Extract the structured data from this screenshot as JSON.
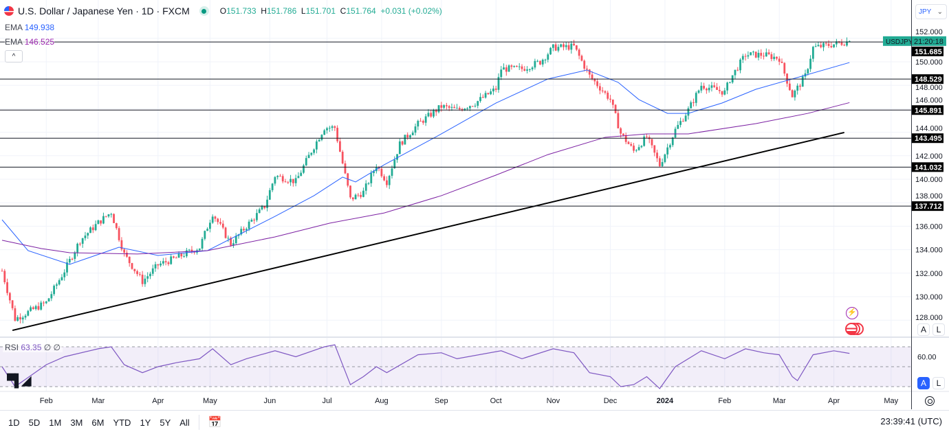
{
  "header": {
    "symbol_title": "U.S. Dollar / Japanese Yen · 1D · FXCM",
    "ohlc": {
      "o_label": "O",
      "o": "151.733",
      "h_label": "H",
      "h": "151.786",
      "l_label": "L",
      "l": "151.701",
      "c_label": "C",
      "c": "151.764",
      "change": "+0.031 (+0.02%)"
    },
    "ema1": {
      "label": "EMA",
      "value": "149.938"
    },
    "ema2": {
      "label": "EMA",
      "value": "146.525"
    }
  },
  "currency_selector": "JPY",
  "scale_buttons": {
    "auto": "A",
    "log": "L"
  },
  "rsi_legend": {
    "label": "RSI",
    "value": "63.35",
    "extra1": "∅",
    "extra2": "∅"
  },
  "price_axis_label": "60.00",
  "symbol_tag": "USDJPY",
  "countdown": "21:20:18",
  "toolbar": {
    "ranges": [
      "1D",
      "5D",
      "1M",
      "3M",
      "6M",
      "YTD",
      "1Y",
      "5Y",
      "All"
    ],
    "clock": "23:39:41 (UTC)"
  },
  "colors": {
    "up": "#22ab94",
    "down": "#f7525f",
    "ema_fast": "#2962ff",
    "ema_slow": "#7b1fa2",
    "rsi": "#7e57c2",
    "level_line": "#131722"
  },
  "chart_data": {
    "type": "candlestick",
    "symbol": "USDJPY",
    "interval": "1D",
    "ylim": [
      127,
      153
    ],
    "y_ticks": [
      152,
      150,
      148,
      146,
      144,
      142,
      140,
      138,
      136,
      134,
      132,
      130,
      128
    ],
    "grid": true,
    "x_ticks": [
      {
        "label": "Feb",
        "date": "2023-02-01"
      },
      {
        "label": "Mar",
        "date": "2023-03-01"
      },
      {
        "label": "Apr",
        "date": "2023-04-03"
      },
      {
        "label": "May",
        "date": "2023-05-01"
      },
      {
        "label": "Jun",
        "date": "2023-06-01"
      },
      {
        "label": "Jul",
        "date": "2023-07-03"
      },
      {
        "label": "Aug",
        "date": "2023-08-01"
      },
      {
        "label": "Sep",
        "date": "2023-09-01"
      },
      {
        "label": "Oct",
        "date": "2023-10-02"
      },
      {
        "label": "Nov",
        "date": "2023-11-01"
      },
      {
        "label": "Dec",
        "date": "2023-12-01"
      },
      {
        "label": "2024",
        "date": "2024-01-01"
      },
      {
        "label": "Feb",
        "date": "2024-02-01"
      },
      {
        "label": "Mar",
        "date": "2024-03-01"
      },
      {
        "label": "Apr",
        "date": "2024-04-01"
      },
      {
        "label": "May",
        "date": "2024-05-01"
      }
    ],
    "close_path": [
      [
        "2023-01-09",
        132.2
      ],
      [
        "2023-01-16",
        128.1
      ],
      [
        "2023-02-01",
        129.5
      ],
      [
        "2023-02-10",
        132.2
      ],
      [
        "2023-02-20",
        134.8
      ],
      [
        "2023-03-01",
        136.3
      ],
      [
        "2023-03-08",
        137.2
      ],
      [
        "2023-03-15",
        133.6
      ],
      [
        "2023-03-24",
        131.3
      ],
      [
        "2023-04-03",
        132.7
      ],
      [
        "2023-04-12",
        133.3
      ],
      [
        "2023-04-25",
        134.2
      ],
      [
        "2023-05-02",
        137.1
      ],
      [
        "2023-05-11",
        134.5
      ],
      [
        "2023-05-19",
        136.0
      ],
      [
        "2023-05-30",
        137.7
      ],
      [
        "2023-06-05",
        140.3
      ],
      [
        "2023-06-15",
        139.8
      ],
      [
        "2023-06-23",
        142.4
      ],
      [
        "2023-06-30",
        144.4
      ],
      [
        "2023-07-06",
        144.4
      ],
      [
        "2023-07-14",
        138.3
      ],
      [
        "2023-07-21",
        138.9
      ],
      [
        "2023-07-28",
        141.2
      ],
      [
        "2023-08-03",
        139.8
      ],
      [
        "2023-08-10",
        143.0
      ],
      [
        "2023-08-21",
        144.7
      ],
      [
        "2023-09-01",
        146.2
      ],
      [
        "2023-09-11",
        145.9
      ],
      [
        "2023-09-20",
        146.5
      ],
      [
        "2023-10-02",
        147.7
      ],
      [
        "2023-10-04",
        149.4
      ],
      [
        "2023-10-16",
        149.4
      ],
      [
        "2023-10-25",
        150.0
      ],
      [
        "2023-11-01",
        151.2
      ],
      [
        "2023-11-13",
        151.3
      ],
      [
        "2023-11-21",
        148.8
      ],
      [
        "2023-12-01",
        146.8
      ],
      [
        "2023-12-07",
        143.9
      ],
      [
        "2023-12-14",
        142.4
      ],
      [
        "2023-12-21",
        143.6
      ],
      [
        "2023-12-28",
        141.2
      ],
      [
        "2024-01-05",
        144.2
      ],
      [
        "2024-01-12",
        145.9
      ],
      [
        "2024-01-19",
        148.0
      ],
      [
        "2024-02-01",
        147.4
      ],
      [
        "2024-02-05",
        148.5
      ],
      [
        "2024-02-13",
        150.6
      ],
      [
        "2024-02-22",
        150.6
      ],
      [
        "2024-03-01",
        150.3
      ],
      [
        "2024-03-08",
        147.1
      ],
      [
        "2024-03-15",
        148.8
      ],
      [
        "2024-03-20",
        151.2
      ],
      [
        "2024-04-01",
        151.5
      ],
      [
        "2024-04-09",
        151.764
      ]
    ],
    "series": [
      {
        "name": "EMA",
        "color": "#2962ff",
        "values": [
          [
            "2023-01-09",
            136.55
          ],
          [
            "2023-01-23",
            133.92
          ],
          [
            "2023-02-14",
            132.75
          ],
          [
            "2023-03-13",
            134.21
          ],
          [
            "2023-04-03",
            133.51
          ],
          [
            "2023-04-28",
            133.92
          ],
          [
            "2023-06-05",
            136.84
          ],
          [
            "2023-06-26",
            138.6
          ],
          [
            "2023-07-11",
            140.18
          ],
          [
            "2023-07-18",
            139.77
          ],
          [
            "2023-08-02",
            141.23
          ],
          [
            "2023-09-01",
            143.86
          ],
          [
            "2023-10-02",
            146.49
          ],
          [
            "2023-10-30",
            148.54
          ],
          [
            "2023-11-20",
            149.3
          ],
          [
            "2023-12-06",
            148.25
          ],
          [
            "2023-12-18",
            146.78
          ],
          [
            "2024-01-02",
            145.61
          ],
          [
            "2024-01-12",
            145.61
          ],
          [
            "2024-01-31",
            146.49
          ],
          [
            "2024-02-19",
            147.66
          ],
          [
            "2024-03-08",
            148.54
          ],
          [
            "2024-04-09",
            149.938
          ]
        ]
      },
      {
        "name": "EMA",
        "color": "#7b1fa2",
        "values": [
          [
            "2023-01-09",
            134.8
          ],
          [
            "2023-01-30",
            134.1
          ],
          [
            "2023-02-14",
            133.74
          ],
          [
            "2023-03-22",
            133.63
          ],
          [
            "2023-04-28",
            133.92
          ],
          [
            "2023-06-05",
            135.09
          ],
          [
            "2023-07-04",
            136.26
          ],
          [
            "2023-08-02",
            137.13
          ],
          [
            "2023-09-01",
            138.6
          ],
          [
            "2023-10-02",
            140.35
          ],
          [
            "2023-10-30",
            142.1
          ],
          [
            "2023-11-29",
            143.57
          ],
          [
            "2023-12-21",
            143.86
          ],
          [
            "2024-01-12",
            143.86
          ],
          [
            "2024-02-19",
            144.74
          ],
          [
            "2024-03-18",
            145.61
          ],
          [
            "2024-04-09",
            146.525
          ]
        ]
      }
    ],
    "horizontal_levels": [
      151.685,
      148.529,
      145.891,
      143.495,
      141.032,
      137.712
    ],
    "trendline": [
      [
        "2023-01-13",
        127.13
      ],
      [
        "2024-04-05",
        143.98
      ]
    ],
    "rsi": {
      "ylim": [
        25,
        75
      ],
      "bands": [
        70,
        50,
        30
      ],
      "tick": 60,
      "values": [
        [
          "2023-01-09",
          50
        ],
        [
          "2023-01-16",
          30
        ],
        [
          "2023-02-01",
          52
        ],
        [
          "2023-02-10",
          60
        ],
        [
          "2023-03-01",
          68
        ],
        [
          "2023-03-08",
          70
        ],
        [
          "2023-03-15",
          52
        ],
        [
          "2023-03-24",
          44
        ],
        [
          "2023-04-03",
          50
        ],
        [
          "2023-04-12",
          54
        ],
        [
          "2023-04-25",
          58
        ],
        [
          "2023-05-02",
          68
        ],
        [
          "2023-05-11",
          52
        ],
        [
          "2023-05-19",
          58
        ],
        [
          "2023-06-05",
          66
        ],
        [
          "2023-06-15",
          60
        ],
        [
          "2023-06-30",
          70
        ],
        [
          "2023-07-06",
          72
        ],
        [
          "2023-07-14",
          32
        ],
        [
          "2023-07-21",
          40
        ],
        [
          "2023-07-28",
          50
        ],
        [
          "2023-08-03",
          44
        ],
        [
          "2023-08-21",
          62
        ],
        [
          "2023-09-01",
          64
        ],
        [
          "2023-09-11",
          58
        ],
        [
          "2023-10-04",
          66
        ],
        [
          "2023-10-16",
          58
        ],
        [
          "2023-11-01",
          68
        ],
        [
          "2023-11-13",
          64
        ],
        [
          "2023-11-21",
          44
        ],
        [
          "2023-12-01",
          40
        ],
        [
          "2023-12-07",
          30
        ],
        [
          "2023-12-14",
          32
        ],
        [
          "2023-12-21",
          40
        ],
        [
          "2023-12-28",
          28
        ],
        [
          "2024-01-05",
          50
        ],
        [
          "2024-01-19",
          66
        ],
        [
          "2024-02-01",
          58
        ],
        [
          "2024-02-13",
          68
        ],
        [
          "2024-02-22",
          64
        ],
        [
          "2024-03-01",
          62
        ],
        [
          "2024-03-08",
          40
        ],
        [
          "2024-03-12",
          36
        ],
        [
          "2024-03-20",
          62
        ],
        [
          "2024-04-01",
          66
        ],
        [
          "2024-04-09",
          63.35
        ]
      ]
    }
  }
}
